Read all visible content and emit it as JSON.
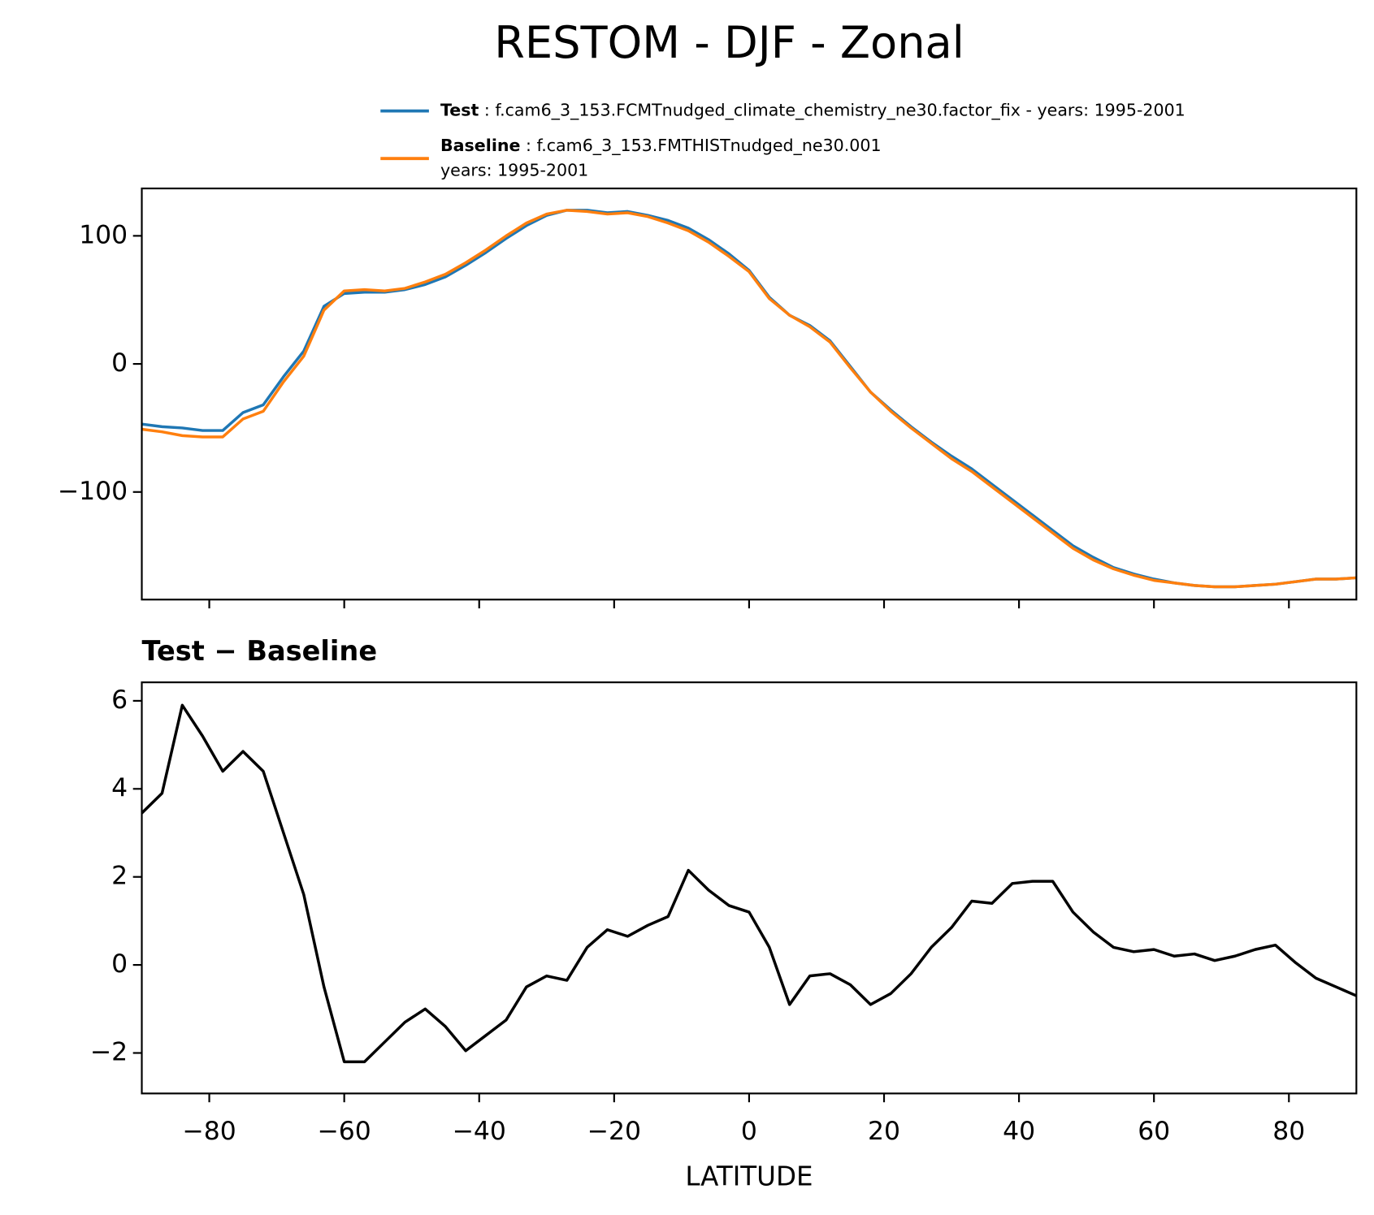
{
  "chart_data": [
    {
      "type": "line",
      "title": "RESTOM - DJF - Zonal",
      "x": [
        -90,
        -87,
        -84,
        -81,
        -78,
        -75,
        -72,
        -69,
        -66,
        -63,
        -60,
        -57,
        -54,
        -51,
        -48,
        -45,
        -42,
        -39,
        -36,
        -33,
        -30,
        -27,
        -24,
        -21,
        -18,
        -15,
        -12,
        -9,
        -6,
        -3,
        0,
        3,
        6,
        9,
        12,
        15,
        18,
        21,
        24,
        27,
        30,
        33,
        36,
        39,
        42,
        45,
        48,
        51,
        54,
        57,
        60,
        63,
        66,
        69,
        72,
        75,
        78,
        81,
        84,
        87,
        90
      ],
      "series": [
        {
          "name": "Test",
          "description": [
            ": f.cam6_3_153.FCMTnudged_climate_chemistry_ne30.factor_fix - years: 1995-2001"
          ],
          "color": "#1f77b4",
          "values": [
            -47,
            -49,
            -50,
            -52,
            -52,
            -38,
            -32,
            -10,
            10,
            45,
            55,
            56,
            56,
            58,
            62,
            68,
            77,
            87,
            98,
            108,
            116,
            120,
            120,
            118,
            119,
            116,
            112,
            106,
            97,
            86,
            73,
            52,
            38,
            30,
            18,
            -2,
            -22,
            -36,
            -49,
            -61,
            -72,
            -82,
            -94,
            -106,
            -118,
            -130,
            -142,
            -151,
            -159,
            -164,
            -168,
            -171,
            -173,
            -174,
            -174,
            -173,
            -172,
            -170,
            -168,
            -168,
            -167
          ]
        },
        {
          "name": "Baseline",
          "description": [
            ": f.cam6_3_153.FMTHISTnudged_ne30.001",
            "years: 1995-2001"
          ],
          "color": "#ff7f0e",
          "values": [
            -51,
            -53,
            -56,
            -57,
            -57,
            -43,
            -37,
            -14,
            6,
            42,
            57,
            58,
            57,
            59,
            64,
            70,
            79,
            89,
            100,
            110,
            117,
            120,
            119,
            117,
            118,
            115,
            110,
            104,
            95,
            84,
            72,
            51,
            38,
            29,
            17,
            -3,
            -22,
            -37,
            -50,
            -62,
            -74,
            -84,
            -96,
            -108,
            -120,
            -132,
            -144,
            -153,
            -160,
            -165,
            -169,
            -171,
            -173,
            -174,
            -174,
            -173,
            -172,
            -170,
            -168,
            -168,
            -167
          ]
        }
      ],
      "xlim": [
        -90,
        90
      ],
      "xticks": [
        -80,
        -60,
        -40,
        -20,
        0,
        20,
        40,
        60,
        80
      ],
      "ylim": [
        -184,
        137
      ],
      "yticks": [
        100,
        0,
        {
          "value": -100,
          "label": "−100"
        }
      ]
    },
    {
      "type": "line",
      "title": "Test − Baseline",
      "xlabel": "LATITUDE",
      "x": [
        -90,
        -87,
        -84,
        -81,
        -78,
        -75,
        -72,
        -69,
        -66,
        -63,
        -60,
        -57,
        -54,
        -51,
        -48,
        -45,
        -42,
        -39,
        -36,
        -33,
        -30,
        -27,
        -24,
        -21,
        -18,
        -15,
        -12,
        -9,
        -6,
        -3,
        0,
        3,
        6,
        9,
        12,
        15,
        18,
        21,
        24,
        27,
        30,
        33,
        36,
        39,
        42,
        45,
        48,
        51,
        54,
        57,
        60,
        63,
        66,
        69,
        72,
        75,
        78,
        81,
        84,
        87,
        90
      ],
      "series": [
        {
          "color": "#000000",
          "values": [
            3.45,
            3.9,
            5.9,
            5.2,
            4.4,
            4.85,
            4.4,
            3.0,
            1.6,
            -0.5,
            -2.2,
            -2.2,
            -1.75,
            -1.3,
            -1.0,
            -1.4,
            -1.95,
            -1.6,
            -1.25,
            -0.5,
            -0.25,
            -0.35,
            0.4,
            0.8,
            0.65,
            0.9,
            1.1,
            2.15,
            1.7,
            1.35,
            1.2,
            0.4,
            -0.9,
            -0.25,
            -0.2,
            -0.45,
            -0.9,
            -0.65,
            -0.2,
            0.4,
            0.85,
            1.45,
            1.4,
            1.85,
            1.9,
            1.9,
            1.2,
            0.75,
            0.4,
            0.3,
            0.35,
            0.2,
            0.25,
            0.1,
            0.2,
            0.35,
            0.45,
            0.05,
            -0.3,
            -0.5,
            -0.7
          ]
        }
      ],
      "xlim": [
        -90,
        90
      ],
      "xticks": [
        {
          "value": -80,
          "label": "−80"
        },
        {
          "value": -60,
          "label": "−60"
        },
        {
          "value": -40,
          "label": "−40"
        },
        {
          "value": -20,
          "label": "−20"
        },
        0,
        20,
        40,
        60,
        80
      ],
      "ylim": [
        -2.92,
        6.42
      ],
      "yticks": [
        6,
        4,
        2,
        0,
        {
          "value": -2,
          "label": "−2"
        }
      ]
    }
  ]
}
